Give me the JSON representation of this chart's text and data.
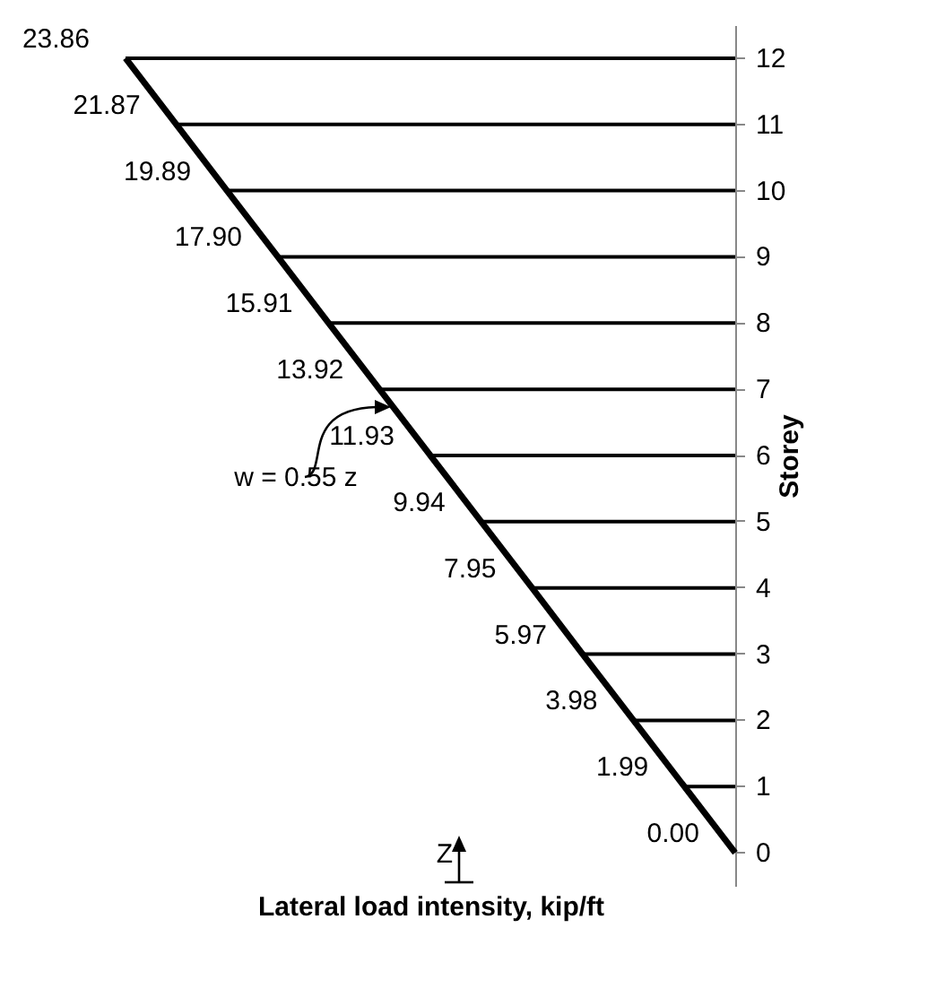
{
  "chart_data": {
    "type": "bar",
    "orientation": "horizontal",
    "xlabel": "Lateral load intensity, kip/ft",
    "ylabel": "Storey",
    "categories": [
      "12",
      "11",
      "10",
      "9",
      "8",
      "7",
      "6",
      "5",
      "4",
      "3",
      "2",
      "1",
      "0"
    ],
    "series": [
      {
        "color": "#000000",
        "values": [
          23.86,
          21.87,
          19.89,
          17.9,
          15.91,
          13.92,
          11.93,
          9.94,
          7.95,
          5.97,
          3.98,
          1.99,
          0.0
        ],
        "value_labels": [
          "23.86",
          "21.87",
          "19.89",
          "17.90",
          "15.91",
          "13.92",
          "11.93",
          "9.94",
          "7.95",
          "5.97",
          "3.98",
          "1.99",
          "0.00"
        ]
      },
      {
        "type": "line",
        "color": "#000000",
        "values": [
          23.86,
          21.87,
          19.89,
          17.9,
          15.91,
          13.92,
          11.93,
          9.94,
          7.95,
          5.97,
          3.98,
          1.99,
          0.0
        ]
      }
    ],
    "annotations": [
      "w = 0.55 z",
      "Z"
    ],
    "tick_labels": "y",
    "grid": false
  }
}
